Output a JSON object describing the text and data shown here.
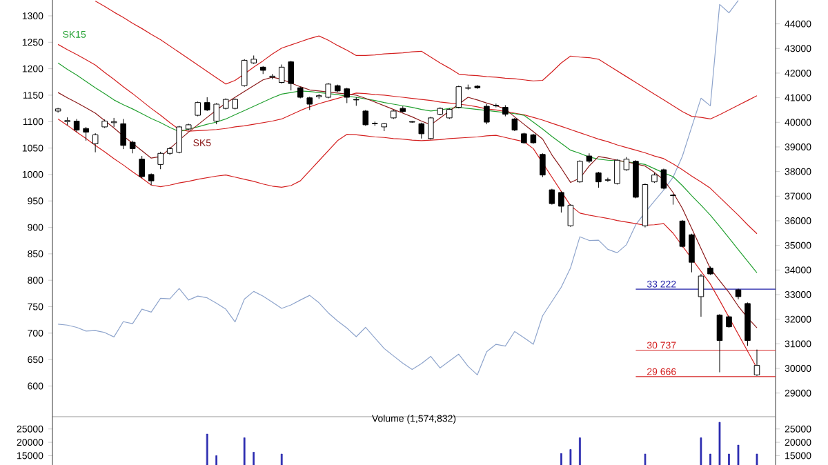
{
  "chart_data": [
    {
      "type": "candlestick",
      "categories": [
        null,
        null,
        null,
        null,
        null,
        null,
        null,
        null,
        null,
        null,
        null,
        null,
        null,
        null,
        null,
        null,
        null,
        null,
        null,
        null,
        null,
        null,
        null,
        null,
        null,
        null,
        null,
        null,
        null,
        null,
        null,
        null,
        null,
        null,
        null,
        null,
        null,
        null,
        null,
        null,
        null,
        null,
        null,
        null,
        null,
        null,
        null,
        null,
        null,
        null,
        null,
        null,
        null,
        null,
        null,
        null,
        null,
        null,
        null,
        null,
        null,
        null,
        null,
        null,
        null,
        null,
        null,
        null,
        null,
        null,
        null,
        null,
        null,
        null,
        null,
        null
      ],
      "ohlc": [
        [
          1120,
          1126,
          1117,
          1124
        ],
        [
          1100,
          1108,
          1093,
          1102
        ],
        [
          1101,
          1105,
          1080,
          1084
        ],
        [
          1087,
          1090,
          1064,
          1080
        ],
        [
          1058,
          1078,
          1042,
          1075
        ],
        [
          1090,
          1104,
          1088,
          1101
        ],
        [
          1098,
          1107,
          1090,
          1100
        ],
        [
          1096,
          1105,
          1048,
          1055
        ],
        [
          1061,
          1064,
          1040,
          1049
        ],
        [
          1029,
          1035,
          993,
          996
        ],
        [
          1000,
          1002,
          980,
          988
        ],
        [
          1019,
          1043,
          1010,
          1040
        ],
        [
          1040,
          1052,
          1037,
          1049
        ],
        [
          1042,
          1092,
          1040,
          1090
        ],
        [
          1086,
          1096,
          1084,
          1094
        ],
        [
          1112,
          1138,
          1110,
          1136
        ],
        [
          1136,
          1146,
          1120,
          1122
        ],
        [
          1101,
          1135,
          1095,
          1133
        ],
        [
          1125,
          1144,
          1123,
          1142
        ],
        [
          1125,
          1144,
          1123,
          1142
        ],
        [
          1168,
          1218,
          1166,
          1216
        ],
        [
          1211,
          1225,
          1209,
          1218
        ],
        [
          1203,
          1205,
          1190,
          1197
        ],
        [
          1184,
          1190,
          1180,
          1186
        ],
        [
          1174,
          1208,
          1172,
          1203
        ],
        [
          1213,
          1215,
          1159,
          1172
        ],
        [
          1164,
          1166,
          1144,
          1146
        ],
        [
          1145,
          1147,
          1122,
          1133
        ],
        [
          1147,
          1152,
          1143,
          1149
        ],
        [
          1146,
          1173,
          1144,
          1171
        ],
        [
          1168,
          1170,
          1156,
          1158
        ],
        [
          1162,
          1164,
          1135,
          1146
        ],
        [
          1142,
          1146,
          1130,
          1141
        ],
        [
          1120,
          1122,
          1092,
          1094
        ],
        [
          1096,
          1100,
          1092,
          1097
        ],
        [
          1090,
          1097,
          1082,
          1096
        ],
        [
          1107,
          1122,
          1105,
          1120
        ],
        [
          1125,
          1129,
          1117,
          1119
        ],
        [
          1100,
          1101,
          1098,
          1099
        ],
        [
          1096,
          1098,
          1068,
          1077
        ],
        [
          1068,
          1109,
          1066,
          1107
        ],
        [
          1114,
          1127,
          1112,
          1125
        ],
        [
          1107,
          1125,
          1105,
          1123
        ],
        [
          1127,
          1168,
          1125,
          1166
        ],
        [
          1163,
          1170,
          1160,
          1164
        ],
        [
          1167,
          1169,
          1162,
          1164
        ],
        [
          1129,
          1133,
          1095,
          1099
        ],
        [
          1130,
          1134,
          1127,
          1131
        ],
        [
          1127,
          1131,
          1110,
          1114
        ],
        [
          1105,
          1107,
          1082,
          1084
        ],
        [
          1077,
          1079,
          1058,
          1060
        ],
        [
          1075,
          1077,
          1058,
          1060
        ],
        [
          1038,
          1040,
          995,
          999
        ],
        [
          971,
          973,
          943,
          945
        ],
        [
          966,
          968,
          928,
          940
        ],
        [
          903,
          944,
          901,
          942
        ],
        [
          986,
          1027,
          984,
          1025
        ],
        [
          1035,
          1040,
          1022,
          1025
        ],
        [
          1003,
          1005,
          975,
          986
        ],
        [
          989,
          994,
          986,
          990
        ],
        [
          983,
          1029,
          981,
          1027
        ],
        [
          1009,
          1033,
          1007,
          1029
        ],
        [
          1025,
          1027,
          955,
          957
        ],
        [
          903,
          983,
          900,
          981
        ],
        [
          986,
          1003,
          984,
          999
        ],
        [
          1009,
          1011,
          972,
          974
        ],
        [
          961,
          963,
          943,
          960
        ],
        [
          912,
          914,
          862,
          864
        ],
        [
          886,
          888,
          815,
          834
        ],
        [
          769,
          812,
          731,
          808
        ],
        [
          823,
          826,
          810,
          812
        ],
        [
          734,
          736,
          626,
          686
        ],
        [
          731,
          733,
          710,
          712
        ],
        [
          782,
          784,
          764,
          769
        ],
        [
          756,
          758,
          676,
          686
        ],
        [
          621,
          669,
          619,
          639
        ]
      ],
      "series": [
        {
          "type": "line",
          "color": "#d42020",
          "values": [
            null,
            null,
            null,
            null,
            1328,
            1318,
            1307,
            1297,
            1286,
            1276,
            1265,
            1255,
            1243,
            1231,
            1219,
            1207,
            1195,
            1183,
            1171,
            1178,
            1190,
            1203,
            1215,
            1228,
            1239,
            1245,
            1251,
            1257,
            1262,
            1254,
            1244,
            1235,
            1225,
            1225,
            1226,
            1228,
            1229,
            1230,
            1232,
            1233,
            1222,
            1211,
            1201,
            1190,
            1188,
            1187,
            1185,
            1184,
            1182,
            1181,
            1179,
            1177,
            1178,
            1194,
            1211,
            1224,
            1222,
            1221,
            1218,
            1207,
            1196,
            1185,
            1174,
            1163,
            1152,
            1141,
            1130,
            1119,
            1110,
            1108,
            1105,
            1113,
            1122,
            1131,
            1140,
            1149
          ]
        },
        {
          "type": "line",
          "color": "#d42020",
          "values": [
            1246,
            1236,
            1227,
            1217,
            1207,
            1193,
            1180,
            1166,
            1153,
            1139,
            1125,
            1112,
            1098,
            1085,
            1082,
            1083,
            1084,
            1085,
            1087,
            1090,
            1092,
            1095,
            1098,
            1101,
            1105,
            1113,
            1121,
            1128,
            1134,
            1139,
            1144,
            1149,
            1154,
            1153,
            1151,
            1150,
            1148,
            1146,
            1144,
            1142,
            1140,
            1137,
            1135,
            1133,
            1131,
            1128,
            1124,
            1122,
            1119,
            1116,
            1113,
            1108,
            1103,
            1097,
            1091,
            1085,
            1079,
            1073,
            1067,
            1062,
            1056,
            1051,
            1046,
            1041,
            1035,
            1030,
            1020,
            1009,
            997,
            986,
            974,
            957,
            940,
            923,
            905,
            888
          ]
        },
        {
          "type": "line",
          "color": "#d42020",
          "values": [
            1105,
            1093,
            1080,
            1068,
            1055,
            1043,
            1030,
            1018,
            1005,
            993,
            980,
            977,
            980,
            984,
            987,
            991,
            994,
            997,
            999,
            995,
            991,
            987,
            982,
            978,
            976,
            979,
            988,
            1007,
            1026,
            1045,
            1064,
            1076,
            1075,
            1073,
            1071,
            1070,
            1068,
            1067,
            1065,
            1064,
            1065,
            1066,
            1068,
            1069,
            1070,
            1071,
            1073,
            1074,
            1070,
            1066,
            1062,
            1049,
            1022,
            995,
            968,
            941,
            927,
            923,
            920,
            917,
            913,
            910,
            907,
            904,
            905,
            907,
            889,
            865,
            841,
            817,
            793,
            762,
            730,
            698,
            666,
            634
          ]
        },
        {
          "type": "line",
          "name": "SK15",
          "color": "#22a030",
          "values": [
            1211,
            1199,
            1188,
            1176,
            1164,
            1153,
            1141,
            1132,
            1124,
            1115,
            1106,
            1098,
            1089,
            1081,
            1086,
            1090,
            1095,
            1099,
            1105,
            1113,
            1121,
            1129,
            1137,
            1145,
            1152,
            1155,
            1158,
            1157,
            1155,
            1153,
            1151,
            1148,
            1146,
            1143,
            1140,
            1136,
            1133,
            1130,
            1127,
            1123,
            1120,
            1122,
            1125,
            1127,
            1125,
            1123,
            1121,
            1119,
            1117,
            1115,
            1112,
            1099,
            1086,
            1072,
            1059,
            1046,
            1040,
            1033,
            1029,
            1027,
            1026,
            1024,
            1022,
            1019,
            1011,
            1003,
            996,
            979,
            960,
            942,
            923,
            902,
            880,
            858,
            836,
            814
          ]
        },
        {
          "type": "line",
          "name": "SK5",
          "color": "#8b1a1a",
          "values": [
            1155,
            1145,
            1136,
            1126,
            1116,
            1102,
            1088,
            1073,
            1059,
            1045,
            1031,
            1034,
            1049,
            1065,
            1080,
            1094,
            1108,
            1122,
            1135,
            1146,
            1157,
            1168,
            1179,
            1184,
            1180,
            1173,
            1166,
            1160,
            1158,
            1156,
            1154,
            1152,
            1150,
            1144,
            1137,
            1130,
            1123,
            1116,
            1109,
            1101,
            1094,
            1107,
            1120,
            1133,
            1146,
            1141,
            1135,
            1130,
            1124,
            1109,
            1095,
            1081,
            1067,
            1037,
            1012,
            985,
            993,
            1016,
            1034,
            1031,
            1027,
            1024,
            1020,
            1016,
            1004,
            990,
            966,
            936,
            898,
            860,
            822,
            799,
            777,
            751,
            729,
            710
          ]
        },
        {
          "type": "line",
          "axis": "y2",
          "color": "#8ea4cc",
          "values": [
            31800,
            31760,
            31670,
            31520,
            31540,
            31460,
            31280,
            31900,
            31820,
            32410,
            32290,
            32850,
            32830,
            33250,
            32780,
            32940,
            32870,
            32650,
            32410,
            31890,
            32820,
            33130,
            32940,
            32690,
            32440,
            32580,
            32780,
            32970,
            32670,
            32260,
            31930,
            31640,
            31290,
            31670,
            31240,
            30810,
            30510,
            30210,
            29960,
            30200,
            30490,
            30020,
            30300,
            30580,
            30090,
            29740,
            30680,
            30980,
            30910,
            31500,
            31250,
            30980,
            32140,
            32720,
            33300,
            34090,
            35350,
            35200,
            35210,
            34840,
            34700,
            35030,
            35840,
            36340,
            36800,
            37250,
            37770,
            38620,
            39810,
            40980,
            40670,
            44790,
            44450,
            44950,
            null,
            null
          ]
        }
      ],
      "ylim": [
        542,
        1330
      ],
      "yticks": [
        600,
        650,
        700,
        750,
        800,
        850,
        900,
        950,
        1000,
        1050,
        1100,
        1150,
        1200,
        1250,
        1300
      ],
      "y2lim": [
        28040,
        44970
      ],
      "y2ticks": [
        29000,
        30000,
        31000,
        32000,
        33000,
        34000,
        35000,
        36000,
        37000,
        38000,
        39000,
        40000,
        41000,
        42000,
        43000,
        44000
      ],
      "ref_lines": [
        {
          "axis": "y2",
          "value": 33222,
          "label": "33 222",
          "color": "#1f1fa8"
        },
        {
          "axis": "y2",
          "value": 30737,
          "label": "30 737",
          "color": "#d42020"
        },
        {
          "axis": "y2",
          "value": 29666,
          "label": "29 666",
          "color": "#d42020"
        }
      ]
    },
    {
      "type": "bar",
      "title": "Volume (1,574,832)",
      "color": "#2b2bb0",
      "categories": [
        null,
        null,
        null,
        null,
        null,
        null,
        null,
        null,
        null,
        null,
        null,
        null,
        null,
        null,
        null,
        null,
        null,
        null,
        null,
        null,
        null,
        null,
        null,
        null,
        null,
        null,
        null,
        null,
        null,
        null,
        null,
        null,
        null,
        null,
        null,
        null,
        null,
        null,
        null,
        null,
        null,
        null,
        null,
        null,
        null,
        null,
        null,
        null,
        null,
        null,
        null,
        null,
        null,
        null,
        null,
        null,
        null,
        null,
        null,
        null,
        null,
        null,
        null,
        null,
        null,
        null,
        null,
        null,
        null,
        null,
        null,
        null,
        null,
        null,
        null,
        null
      ],
      "values": [
        null,
        null,
        null,
        null,
        null,
        null,
        null,
        null,
        null,
        null,
        null,
        null,
        null,
        null,
        null,
        null,
        23100,
        15000,
        null,
        null,
        21700,
        16300,
        null,
        null,
        15600,
        null,
        null,
        null,
        null,
        null,
        null,
        null,
        null,
        null,
        null,
        null,
        null,
        null,
        null,
        null,
        null,
        null,
        null,
        null,
        null,
        null,
        null,
        null,
        null,
        null,
        null,
        null,
        null,
        null,
        15800,
        17300,
        21700,
        null,
        null,
        null,
        null,
        null,
        null,
        15600,
        null,
        null,
        null,
        null,
        null,
        21700,
        15600,
        27500,
        15600,
        19000,
        null,
        15600
      ],
      "ylim": [
        11500,
        29600
      ],
      "yticks": [
        15000,
        20000,
        25000
      ],
      "y2lim": [
        11500,
        29600
      ],
      "y2ticks": [
        15000,
        20000,
        25000
      ]
    }
  ]
}
